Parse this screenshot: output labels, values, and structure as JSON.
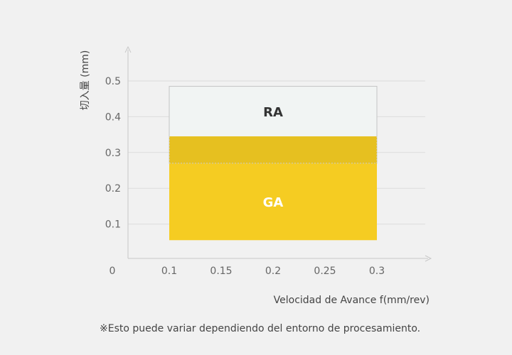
{
  "chart_data": {
    "type": "area",
    "xlabel": "Velocidad de Avance f(mm/rev)",
    "ylabel": "切入量 (mm)",
    "x_ticks": [
      "0.1",
      "0.15",
      "0.2",
      "0.25",
      "0.3"
    ],
    "y_ticks": [
      "0.1",
      "0.2",
      "0.3",
      "0.4",
      "0.5"
    ],
    "origin_label": "0",
    "xlim": [
      0.06,
      0.35
    ],
    "ylim": [
      0.0,
      0.5
    ],
    "grid": true,
    "regions": [
      {
        "name": "RA",
        "x": [
          0.1,
          0.3
        ],
        "y": [
          0.27,
          0.485
        ],
        "color": "#f1f4f3",
        "label_color": "#333333"
      },
      {
        "name": "GA",
        "x": [
          0.1,
          0.3
        ],
        "y": [
          0.055,
          0.345
        ],
        "color": "#f5cc22",
        "label_color": "#ffffff"
      }
    ],
    "overlap_color": "#e6c020"
  },
  "note": "※Esto puede variar dependiendo del entorno de procesamiento."
}
